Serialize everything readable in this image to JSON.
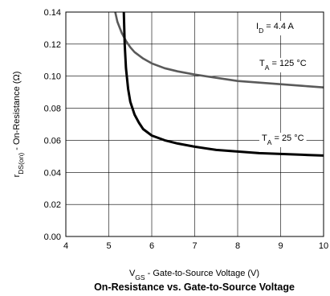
{
  "chart_data": {
    "type": "line",
    "title": "On-Resistance vs. Gate-to-Source Voltage",
    "xlabel": {
      "main": "V",
      "sub": "GS",
      "rest": " - Gate-to-Source Voltage (V)"
    },
    "ylabel": {
      "main": "r",
      "sub": "DS(on)",
      "rest": " - On-Resistance (Ω)"
    },
    "xlim": [
      4,
      10
    ],
    "ylim": [
      0.0,
      0.14
    ],
    "xticks": [
      "4",
      "5",
      "6",
      "7",
      "8",
      "9",
      "10"
    ],
    "yticks": [
      "0.00",
      "0.02",
      "0.04",
      "0.06",
      "0.08",
      "0.10",
      "0.12",
      "0.14"
    ],
    "grid": true,
    "condition": {
      "main": "I",
      "sub": "D",
      "rest": " = 4.4 A"
    },
    "series": [
      {
        "name": {
          "main": "T",
          "sub": "A",
          "rest": " = 125 °C"
        },
        "color": "#5a5a5a",
        "x": [
          5.15,
          5.2,
          5.3,
          5.4,
          5.5,
          5.6,
          5.8,
          6.0,
          6.3,
          6.6,
          7.0,
          7.5,
          8.0,
          8.5,
          9.0,
          9.5,
          10.0
        ],
        "y": [
          0.14,
          0.134,
          0.127,
          0.122,
          0.118,
          0.115,
          0.111,
          0.108,
          0.105,
          0.103,
          0.101,
          0.099,
          0.097,
          0.096,
          0.095,
          0.094,
          0.093
        ]
      },
      {
        "name": {
          "main": "T",
          "sub": "A",
          "rest": " = 25 °C"
        },
        "color": "#000000",
        "x": [
          5.35,
          5.37,
          5.4,
          5.45,
          5.5,
          5.6,
          5.7,
          5.8,
          6.0,
          6.3,
          6.6,
          7.0,
          7.5,
          8.0,
          8.5,
          9.0,
          9.5,
          10.0
        ],
        "y": [
          0.14,
          0.12,
          0.105,
          0.092,
          0.084,
          0.076,
          0.071,
          0.067,
          0.063,
          0.06,
          0.058,
          0.056,
          0.054,
          0.053,
          0.052,
          0.0515,
          0.051,
          0.0505
        ]
      }
    ]
  }
}
